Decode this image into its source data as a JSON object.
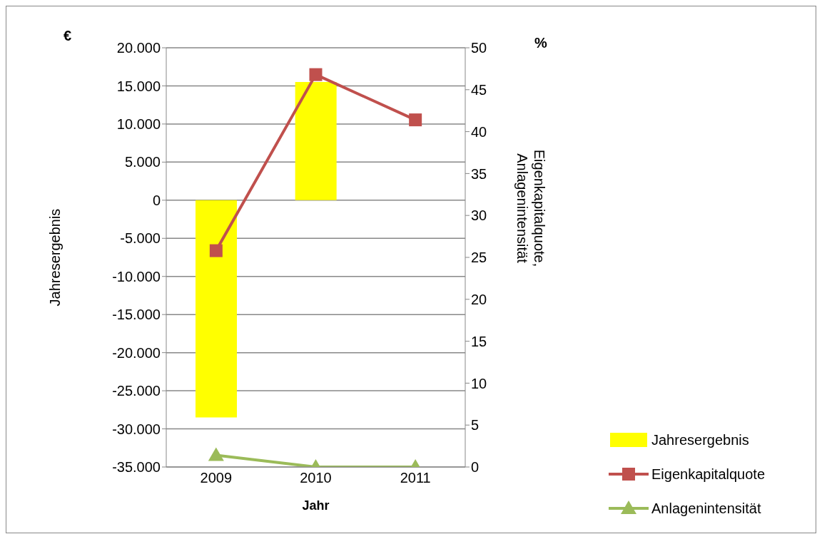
{
  "chart_data": {
    "type": "bar",
    "xlabel": "Jahr",
    "ylabel": "Jahresergebnis",
    "y2label": "Eigenkapitalquote, Anlagenintensität",
    "categories": [
      "2009",
      "2010",
      "2011"
    ],
    "series": [
      {
        "name": "Jahresergebnis",
        "color": "#ffff00",
        "values": [
          -28500,
          15500,
          null
        ]
      },
      {
        "name": "Eigenkapitalquote",
        "type": "line",
        "axis": "y2",
        "marker": "square",
        "color": "#c0504d",
        "values": [
          25.8,
          46.8,
          41.4
        ]
      },
      {
        "name": "Anlagenintensität",
        "type": "line",
        "axis": "y2",
        "marker": "triangle",
        "color": "#9bbb59",
        "values": [
          1.4,
          0,
          0
        ]
      }
    ],
    "ylim": [
      -35000,
      20000
    ],
    "yticks": [
      {
        "value": 20000,
        "label": "20.000"
      },
      {
        "value": 15000,
        "label": "15.000"
      },
      {
        "value": 10000,
        "label": "10.000"
      },
      {
        "value": 5000,
        "label": "5.000"
      },
      0,
      {
        "value": -5000,
        "label": "-5.000"
      },
      {
        "value": -10000,
        "label": "-10.000"
      },
      {
        "value": -15000,
        "label": "-15.000"
      },
      {
        "value": -20000,
        "label": "-20.000"
      },
      {
        "value": -25000,
        "label": "-25.000"
      },
      {
        "value": -30000,
        "label": "-30.000"
      },
      {
        "value": -35000,
        "label": "-35.000"
      }
    ],
    "y2lim": [
      0,
      50
    ],
    "y2ticks": [
      0,
      5,
      10,
      15,
      20,
      25,
      30,
      35,
      40,
      45,
      50
    ],
    "annotations": [
      "€",
      "%"
    ],
    "grid": "y",
    "legend": "bottom right"
  }
}
